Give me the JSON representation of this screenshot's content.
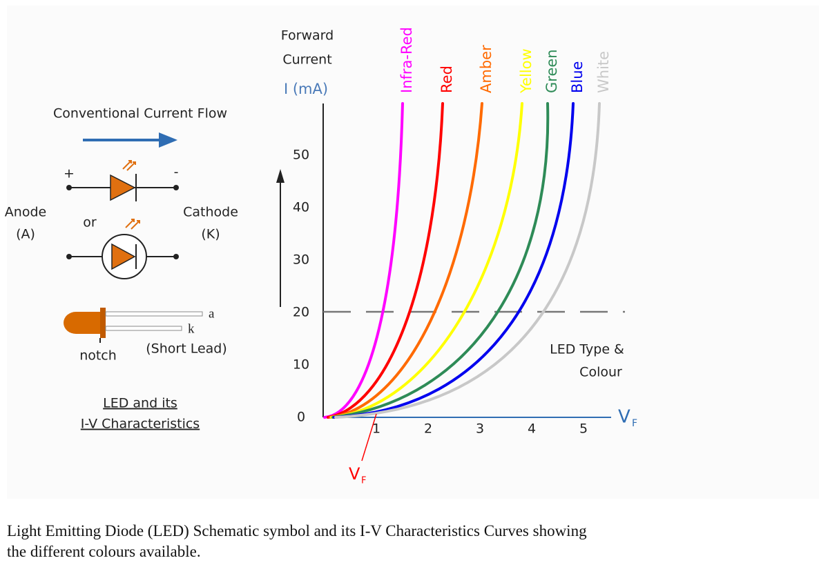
{
  "diagram": {
    "left": {
      "flow_label": "Conventional Current Flow",
      "plus": "+",
      "minus": "-",
      "anode": "Anode",
      "anode_symbol": "(A)",
      "or": "or",
      "cathode": "Cathode",
      "cathode_symbol": "(K)",
      "lead_a": "a",
      "lead_k": "k",
      "notch": "notch",
      "short_lead": "(Short Lead)",
      "title_line1": "LED and its",
      "title_line2": "I-V Characteristics"
    },
    "chart": {
      "y_label_line1": "Forward",
      "y_label_line2": "Current",
      "y_unit": "I (mA)",
      "x_label": "V",
      "x_label_sub": "F",
      "vf_marker": "V",
      "vf_marker_sub": "F",
      "legend_line1": "LED Type &",
      "legend_line2": "Colour",
      "y_ticks": [
        0,
        10,
        20,
        30,
        40,
        50
      ],
      "x_ticks": [
        1,
        2,
        3,
        4,
        5
      ],
      "curves": [
        "Infra-Red",
        "Red",
        "Amber",
        "Yellow",
        "Green",
        "Blue",
        "White"
      ]
    }
  },
  "caption": {
    "line1": "Light Emitting Diode (LED) Schematic symbol and its I-V Characteristics Curves showing",
    "line2": "the different colours available."
  }
}
